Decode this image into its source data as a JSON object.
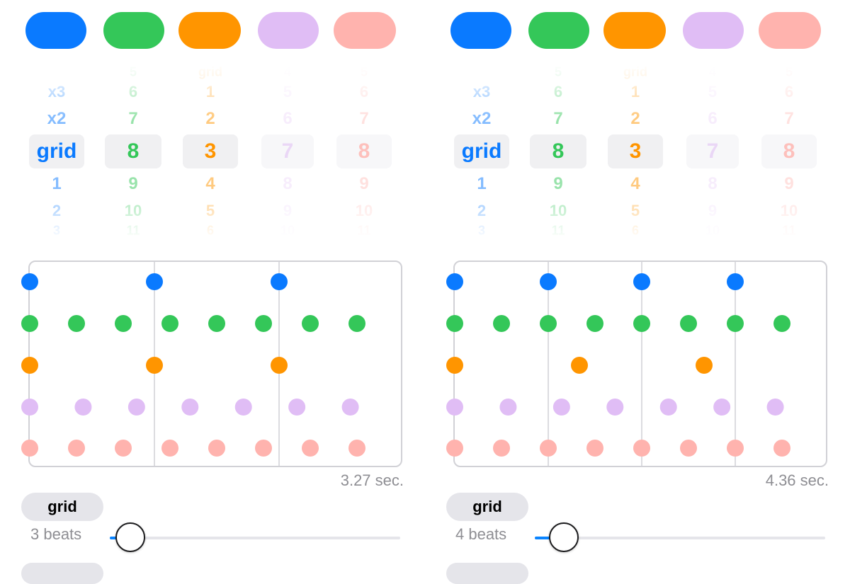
{
  "colors": {
    "blue": "#0a7aff",
    "green": "#34c759",
    "orange": "#ff9500",
    "purple": "#e0bdf5",
    "pink": "#ffb3ae",
    "grid_line": "#d1d1d6",
    "muted_text": "#8e8e93"
  },
  "panels": [
    {
      "picker": {
        "columns": [
          {
            "color": "#0a7aff",
            "items": [
              "x3",
              "x2",
              "grid",
              "1",
              "2",
              "3"
            ],
            "selected_index": 2
          },
          {
            "color": "#34c759",
            "items": [
              "5",
              "6",
              "7",
              "8",
              "9",
              "10",
              "11"
            ],
            "selected_index": 3
          },
          {
            "color": "#ff9500",
            "items": [
              "grid",
              "1",
              "2",
              "3",
              "4",
              "5",
              "6"
            ],
            "selected_index": 3
          },
          {
            "color": "#e0bdf5",
            "items": [
              "4",
              "5",
              "6",
              "7",
              "8",
              "9",
              "10"
            ],
            "selected_index": 3
          },
          {
            "color": "#ffb3ae",
            "items": [
              "5",
              "6",
              "7",
              "8",
              "9",
              "10",
              "11"
            ],
            "selected_index": 3
          }
        ]
      },
      "plot": {
        "grid_divisions": 3,
        "rows": [
          {
            "color": "#0a7aff",
            "count": 3
          },
          {
            "color": "#34c759",
            "count": 8
          },
          {
            "color": "#ff9500",
            "count": 3
          },
          {
            "color": "#e0bdf5",
            "count": 7
          },
          {
            "color": "#ffb3ae",
            "count": 8
          }
        ]
      },
      "duration": "3.27 sec.",
      "mode_label": "grid",
      "beats_label": "3 beats",
      "slider_value": 0.07
    },
    {
      "picker": {
        "columns": [
          {
            "color": "#0a7aff",
            "items": [
              "x3",
              "x2",
              "grid",
              "1",
              "2",
              "3"
            ],
            "selected_index": 2
          },
          {
            "color": "#34c759",
            "items": [
              "5",
              "6",
              "7",
              "8",
              "9",
              "10",
              "11"
            ],
            "selected_index": 3
          },
          {
            "color": "#ff9500",
            "items": [
              "grid",
              "1",
              "2",
              "3",
              "4",
              "5",
              "6"
            ],
            "selected_index": 3
          },
          {
            "color": "#e0bdf5",
            "items": [
              "4",
              "5",
              "6",
              "7",
              "8",
              "9",
              "10"
            ],
            "selected_index": 3
          },
          {
            "color": "#ffb3ae",
            "items": [
              "5",
              "6",
              "7",
              "8",
              "9",
              "10",
              "11"
            ],
            "selected_index": 3
          }
        ]
      },
      "plot": {
        "grid_divisions": 4,
        "rows": [
          {
            "color": "#0a7aff",
            "count": 4
          },
          {
            "color": "#34c759",
            "count": 8
          },
          {
            "color": "#ff9500",
            "count": 3
          },
          {
            "color": "#e0bdf5",
            "count": 7
          },
          {
            "color": "#ffb3ae",
            "count": 8
          }
        ]
      },
      "duration": "4.36 sec.",
      "mode_label": "grid",
      "beats_label": "4 beats",
      "slider_value": 0.1
    }
  ]
}
